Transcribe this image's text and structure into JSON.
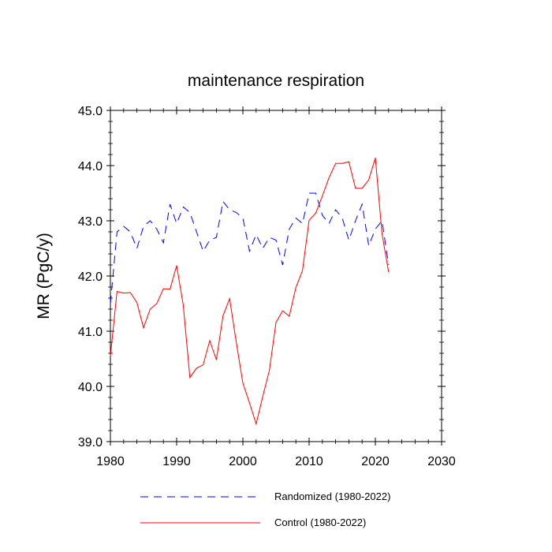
{
  "chart_data": {
    "type": "line",
    "title": "maintenance respiration",
    "xlabel": "",
    "ylabel": "MR  (PgC/y)",
    "xlim": [
      1980,
      2030
    ],
    "ylim": [
      39.0,
      45.0
    ],
    "x_ticks": [
      1980,
      1990,
      2000,
      2010,
      2020,
      2030
    ],
    "x_tick_labels": [
      "1980",
      "1990",
      "2000",
      "2010",
      "2020",
      "2030"
    ],
    "y_ticks": [
      39.0,
      40.0,
      41.0,
      42.0,
      43.0,
      44.0,
      45.0
    ],
    "y_tick_labels": [
      "39.0",
      "40.0",
      "41.0",
      "42.0",
      "43.0",
      "44.0",
      "45.0"
    ],
    "grid": false,
    "legend_position": "bottom",
    "x": [
      1980,
      1981,
      1982,
      1983,
      1984,
      1985,
      1986,
      1987,
      1988,
      1989,
      1990,
      1991,
      1992,
      1993,
      1994,
      1995,
      1996,
      1997,
      1998,
      1999,
      2000,
      2001,
      2002,
      2003,
      2004,
      2005,
      2006,
      2007,
      2008,
      2009,
      2010,
      2011,
      2012,
      2013,
      2014,
      2015,
      2016,
      2017,
      2018,
      2019,
      2020,
      2021,
      2022
    ],
    "series": [
      {
        "name": "Randomized (1980-2022)",
        "color": "#0000ff",
        "style": "dashed",
        "values": [
          41.5,
          42.8,
          42.9,
          42.8,
          42.5,
          42.9,
          43.0,
          42.85,
          42.6,
          43.3,
          42.95,
          43.25,
          43.15,
          42.8,
          42.45,
          42.65,
          42.7,
          43.35,
          43.2,
          43.15,
          43.05,
          42.45,
          42.75,
          42.5,
          42.7,
          42.65,
          42.2,
          42.85,
          43.05,
          42.95,
          43.5,
          43.5,
          43.1,
          42.95,
          43.2,
          43.05,
          42.65,
          43.0,
          43.3,
          42.55,
          42.85,
          43.0,
          42.2
        ]
      },
      {
        "name": "Control (1980-2022)",
        "color": "#ff0000",
        "style": "solid",
        "values": [
          40.55,
          41.72,
          41.69,
          41.7,
          41.52,
          41.06,
          41.4,
          41.5,
          41.77,
          41.76,
          42.19,
          41.47,
          40.16,
          40.33,
          40.39,
          40.83,
          40.48,
          41.28,
          41.59,
          40.8,
          40.06,
          39.7,
          39.32,
          39.82,
          40.29,
          41.16,
          41.37,
          41.27,
          41.79,
          42.1,
          43.01,
          43.14,
          43.45,
          43.78,
          44.04,
          44.04,
          44.07,
          43.59,
          43.59,
          43.74,
          44.14,
          42.77,
          42.07
        ]
      }
    ]
  }
}
